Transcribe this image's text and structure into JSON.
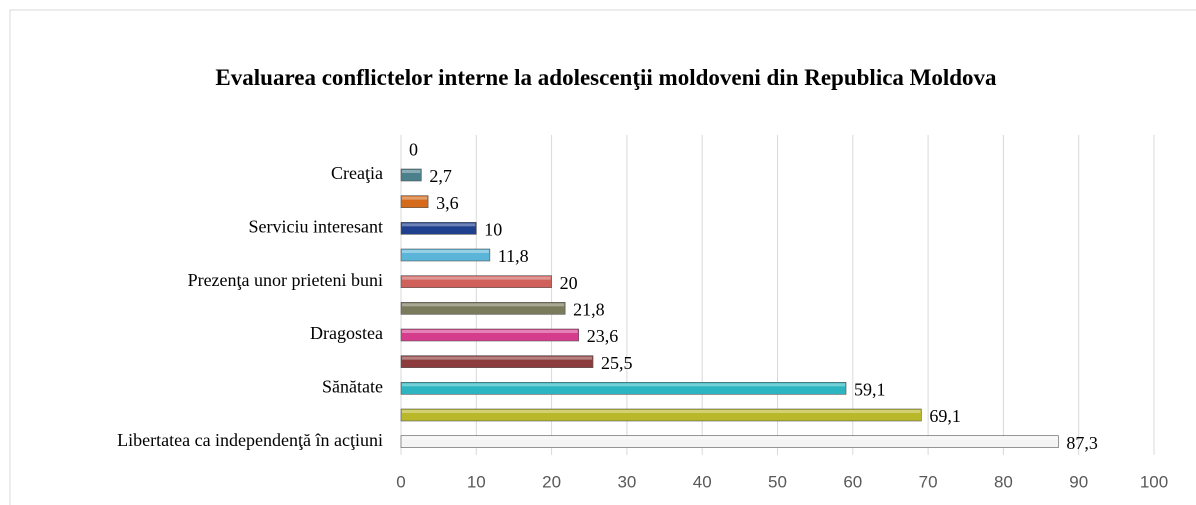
{
  "chart_data": {
    "type": "bar",
    "orientation": "horizontal",
    "title": "Evaluarea conflictelor interne la adolescenţii moldoveni din Republica Moldova",
    "categories": [
      null,
      "Creaţia",
      null,
      "Serviciu interesant",
      null,
      "Prezenţa unor prieteni buni",
      null,
      "Dragostea",
      null,
      "Sănătate",
      null,
      "Libertatea ca independenţă în acţiuni"
    ],
    "values": [
      0,
      2.7,
      3.6,
      10,
      11.8,
      20,
      21.8,
      23.6,
      25.5,
      59.1,
      69.1,
      87.3
    ],
    "value_labels": [
      "0",
      "2,7",
      "3,6",
      "10",
      "11,8",
      "20",
      "21,8",
      "23,6",
      "25,5",
      "59,1",
      "69,1",
      "87,3"
    ],
    "colors": [
      "#6a8f3a",
      "#4a7f8c",
      "#d46a1a",
      "#1f3f8f",
      "#5bb5d9",
      "#d0605a",
      "#7a7a5c",
      "#d63c8c",
      "#8c3c3c",
      "#2cb5c0",
      "#b8b82a",
      "#f4f4f4"
    ],
    "xlim": [
      0,
      100
    ],
    "xticks": [
      0,
      10,
      20,
      30,
      40,
      50,
      60,
      70,
      80,
      90,
      100
    ],
    "grid": true
  }
}
